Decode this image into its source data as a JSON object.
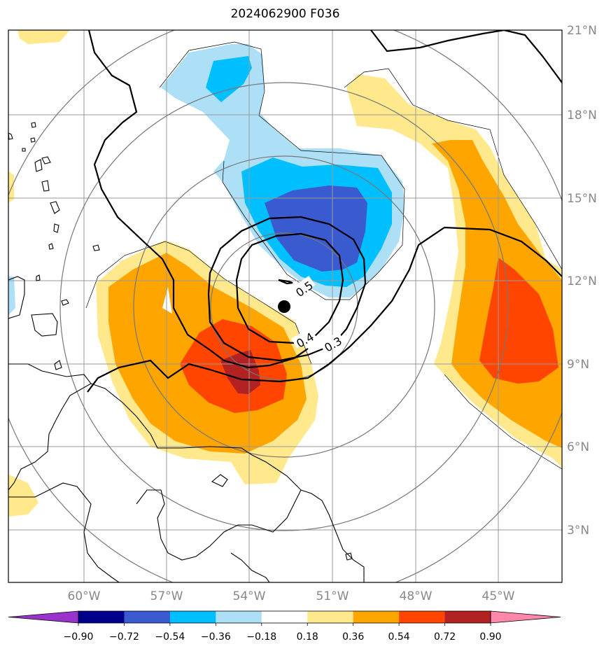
{
  "title": "2024062900 F036",
  "chart_data": {
    "type": "heatmap",
    "title": "2024062900 F036",
    "projection": "map",
    "lon_range": [
      -62.5,
      -42.5
    ],
    "lat_range": [
      1,
      21
    ],
    "lon_ticks": [
      "60°W",
      "57°W",
      "54°W",
      "51°W",
      "48°W",
      "45°W"
    ],
    "lat_ticks": [
      "21°N",
      "18°N",
      "15°N",
      "12°N",
      "9°N",
      "6°N",
      "3°N"
    ],
    "grid": true,
    "colorbar": {
      "location": "bottom",
      "extend": "both",
      "levels": [
        -0.9,
        -0.72,
        -0.54,
        -0.36,
        -0.18,
        0.18,
        0.36,
        0.54,
        0.72,
        0.9
      ],
      "tick_labels": [
        "−0.90",
        "−0.72",
        "−0.54",
        "−0.36",
        "−0.18",
        "0.18",
        "0.36",
        "0.54",
        "0.72",
        "0.90"
      ],
      "colors": [
        "#9933cc",
        "#00008b",
        "#3a5bd0",
        "#00bfff",
        "#ade0f7",
        "#ffffff",
        "#ffe98c",
        "#ffa500",
        "#ff4500",
        "#b22222",
        "#ff88aa"
      ]
    },
    "contour_labels": [
      "0.5",
      "0.4",
      "0.3"
    ],
    "center_marker": {
      "lon": -52.3,
      "lat": 11.1
    }
  }
}
